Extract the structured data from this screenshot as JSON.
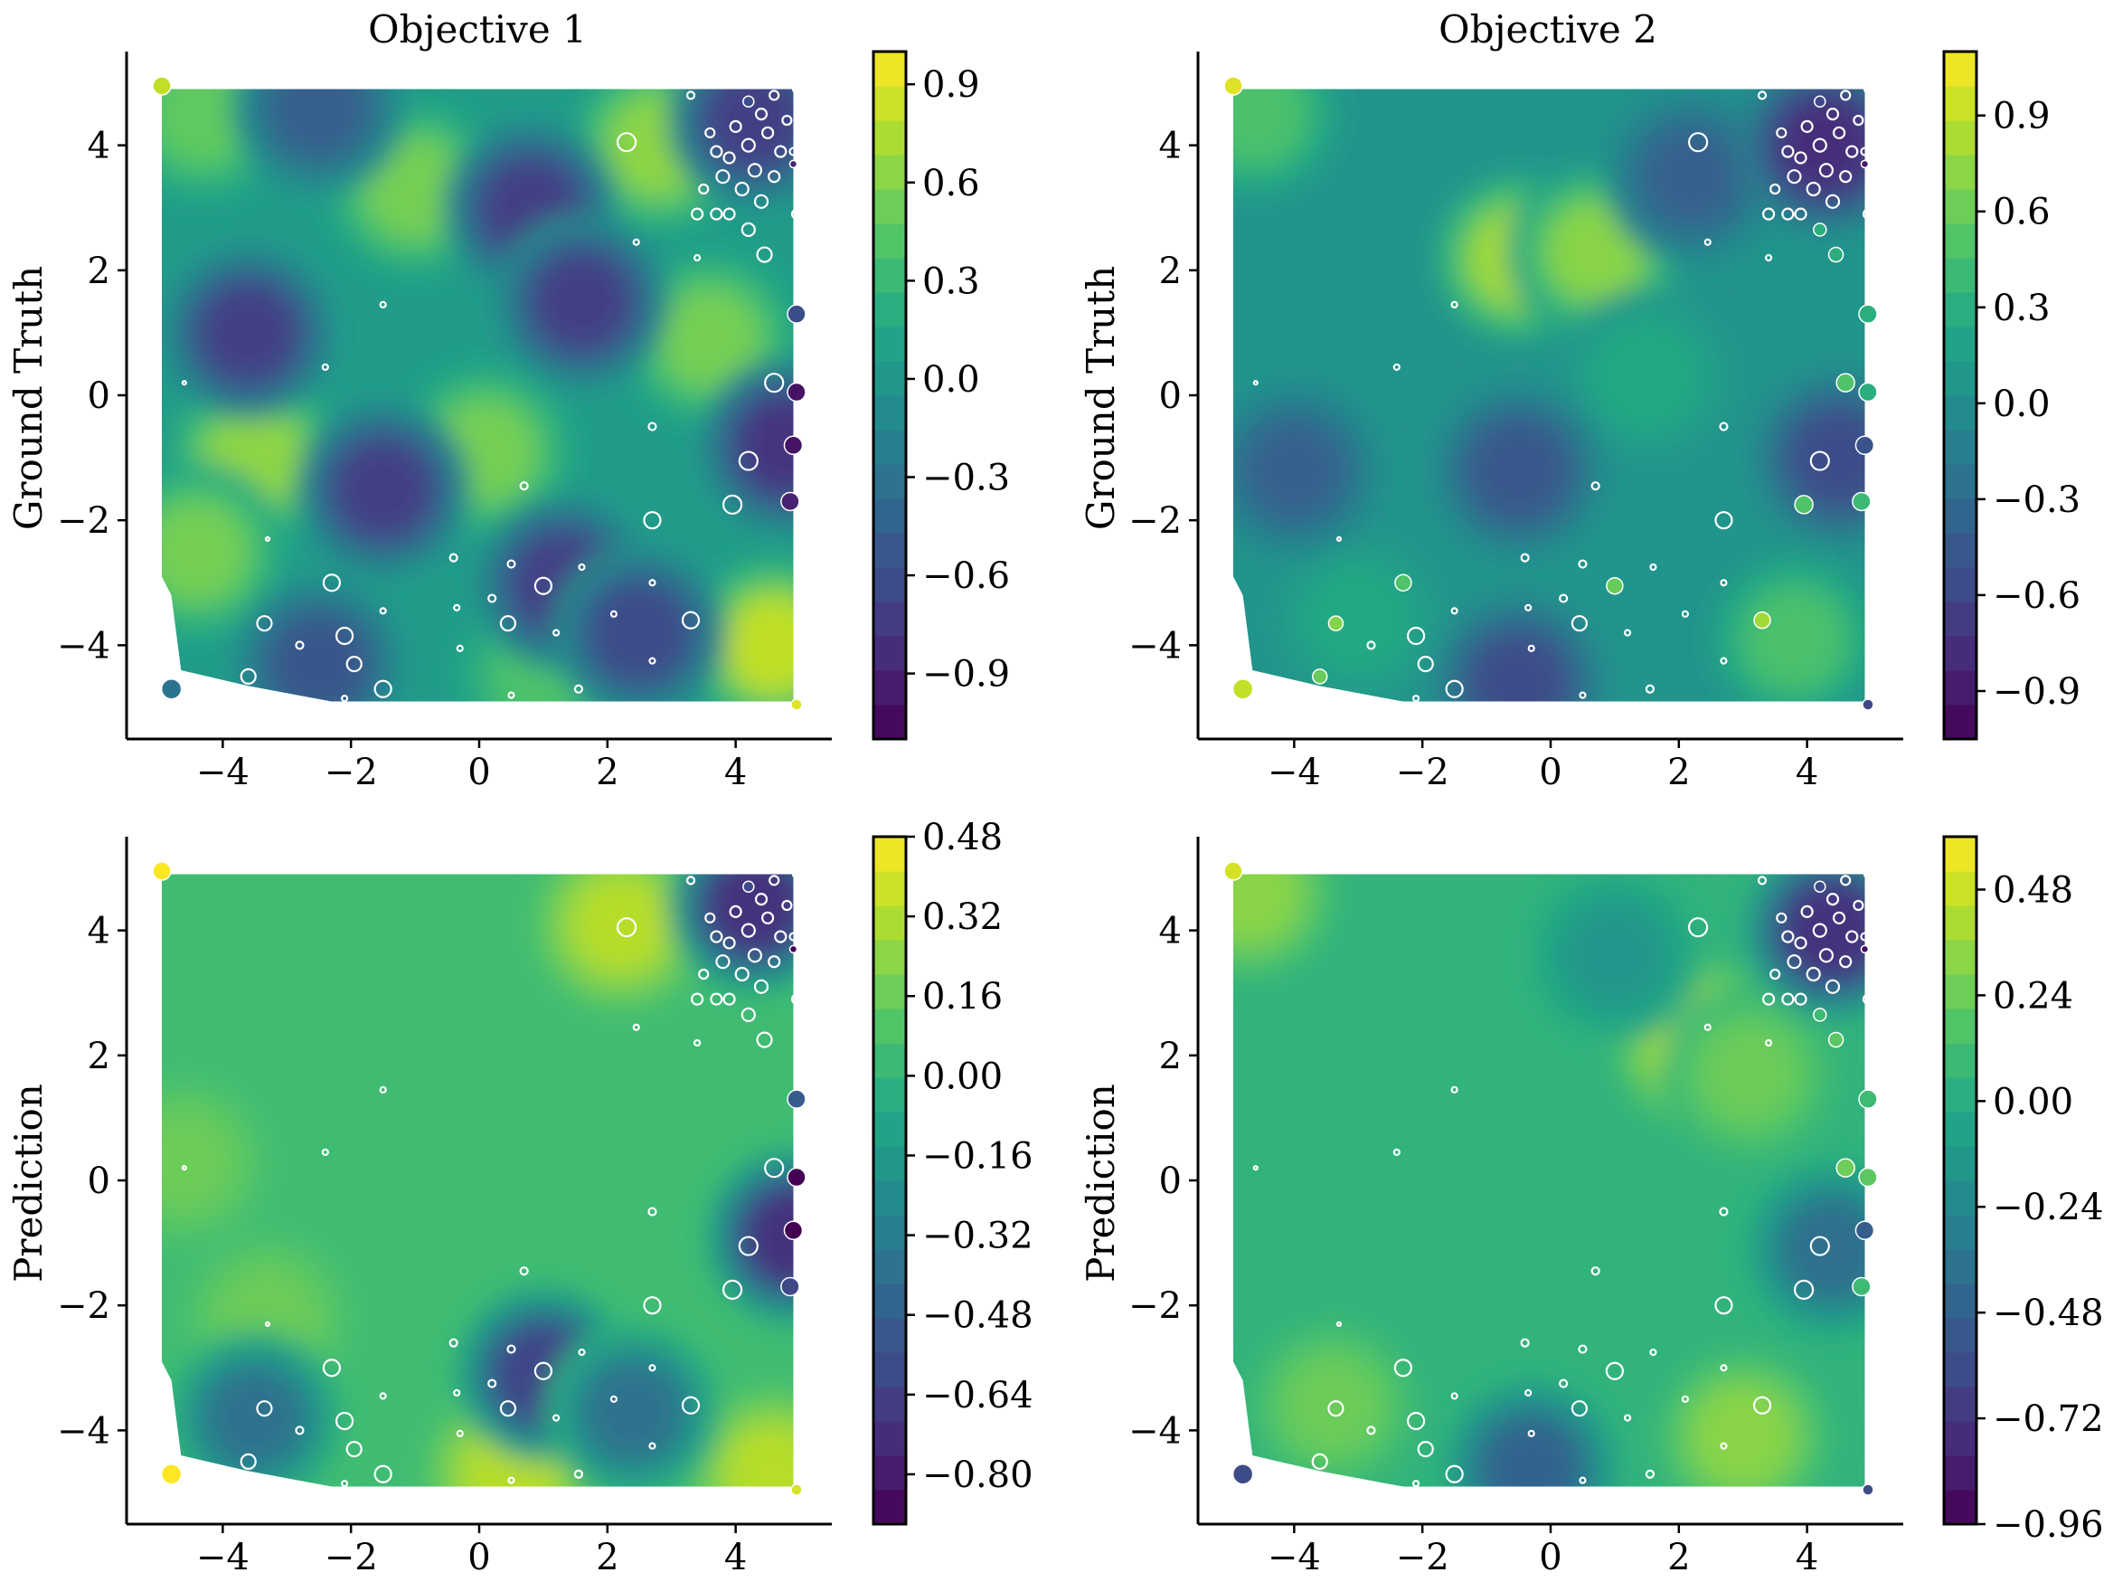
{
  "chart_data": [
    {
      "type": "contour",
      "title": "Objective 1",
      "ylabel": "Ground Truth",
      "xlim": [
        -5.5,
        5.5
      ],
      "ylim": [
        -5.5,
        5.5
      ],
      "x_ticks": [
        -4,
        -2,
        0,
        2,
        4
      ],
      "y_ticks": [
        -4,
        -2,
        0,
        2,
        4
      ],
      "colorbar": {
        "range": [
          -1.1,
          1.0
        ],
        "ticks": [
          0.9,
          0.6,
          0.3,
          0.0,
          -0.3,
          -0.6,
          -0.9
        ],
        "tick_labels": [
          "0.9",
          "0.6",
          "0.3",
          "0.0",
          "−0.3",
          "−0.6",
          "−0.9"
        ]
      },
      "field_blobs": [
        {
          "x": 2.8,
          "y": 4.0,
          "v": 0.8
        },
        {
          "x": -1.0,
          "y": 3.3,
          "v": 0.7
        },
        {
          "x": 3.6,
          "y": 0.9,
          "v": 0.7
        },
        {
          "x": 0.1,
          "y": -0.9,
          "v": 0.7
        },
        {
          "x": -3.5,
          "y": -1.0,
          "v": 0.8
        },
        {
          "x": -4.4,
          "y": -2.5,
          "v": 0.7
        },
        {
          "x": 4.6,
          "y": -4.0,
          "v": 1.0
        },
        {
          "x": -4.3,
          "y": 4.5,
          "v": 0.6
        },
        {
          "x": 1.0,
          "y": -4.5,
          "v": 0.5
        },
        {
          "x": -3.6,
          "y": 1.0,
          "v": -0.9
        },
        {
          "x": 0.8,
          "y": 3.0,
          "v": -0.9
        },
        {
          "x": 1.6,
          "y": 1.5,
          "v": -0.9
        },
        {
          "x": -1.5,
          "y": -1.5,
          "v": -0.9
        },
        {
          "x": 1.3,
          "y": -3.0,
          "v": -0.9
        },
        {
          "x": 2.5,
          "y": -3.8,
          "v": -0.8
        },
        {
          "x": 4.8,
          "y": -0.8,
          "v": -1.0
        },
        {
          "x": 4.3,
          "y": 4.4,
          "v": -0.9
        },
        {
          "x": -2.5,
          "y": 4.6,
          "v": -0.6
        },
        {
          "x": -2.5,
          "y": -4.3,
          "v": -0.7
        }
      ]
    },
    {
      "type": "contour",
      "title": "Objective 2",
      "ylabel": "Ground Truth",
      "xlim": [
        -5.5,
        5.5
      ],
      "ylim": [
        -5.5,
        5.5
      ],
      "x_ticks": [
        -4,
        -2,
        0,
        2,
        4
      ],
      "y_ticks": [
        -4,
        -2,
        0,
        2,
        4
      ],
      "colorbar": {
        "range": [
          -1.05,
          1.1
        ],
        "ticks": [
          0.9,
          0.6,
          0.3,
          0.0,
          -0.3,
          -0.6,
          -0.9
        ],
        "tick_labels": [
          "0.9",
          "0.6",
          "0.3",
          "0.0",
          "−0.3",
          "−0.6",
          "−0.9"
        ]
      },
      "field_blobs": [
        {
          "x": -0.5,
          "y": 2.2,
          "v": 1.0
        },
        {
          "x": 0.7,
          "y": 2.3,
          "v": 0.9
        },
        {
          "x": 3.8,
          "y": -3.9,
          "v": 0.6
        },
        {
          "x": -4.6,
          "y": 4.5,
          "v": 0.6
        },
        {
          "x": 1.5,
          "y": 0.3,
          "v": 0.3
        },
        {
          "x": -3.0,
          "y": -3.6,
          "v": 0.3
        },
        {
          "x": 2.2,
          "y": 3.5,
          "v": -0.5
        },
        {
          "x": -0.5,
          "y": -1.2,
          "v": -0.6
        },
        {
          "x": 4.3,
          "y": 4.0,
          "v": -1.0
        },
        {
          "x": -0.5,
          "y": -4.6,
          "v": -0.7
        },
        {
          "x": 4.5,
          "y": -1.0,
          "v": -0.7
        },
        {
          "x": -4.0,
          "y": -1.2,
          "v": -0.5
        }
      ]
    },
    {
      "type": "contour",
      "title": "",
      "ylabel": "Prediction",
      "xlim": [
        -5.5,
        5.5
      ],
      "ylim": [
        -5.5,
        5.5
      ],
      "x_ticks": [
        -4,
        -2,
        0,
        2,
        4
      ],
      "y_ticks": [
        -4,
        -2,
        0,
        2,
        4
      ],
      "colorbar": {
        "range": [
          -0.9,
          0.48
        ],
        "ticks": [
          0.48,
          0.32,
          0.16,
          0.0,
          -0.16,
          -0.32,
          -0.48,
          -0.64,
          -0.8
        ],
        "tick_labels": [
          "0.48",
          "0.32",
          "0.16",
          "0.00",
          "−0.16",
          "−0.32",
          "−0.48",
          "−0.64",
          "−0.80"
        ]
      },
      "field_blobs": [
        {
          "x": 2.2,
          "y": 4.1,
          "v": 0.4
        },
        {
          "x": -4.6,
          "y": 0.3,
          "v": 0.2
        },
        {
          "x": 0.5,
          "y": -4.7,
          "v": 0.4
        },
        {
          "x": 4.6,
          "y": -4.7,
          "v": 0.4
        },
        {
          "x": -3.3,
          "y": -2.2,
          "v": 0.2
        },
        {
          "x": 1.0,
          "y": -3.1,
          "v": -0.8
        },
        {
          "x": -3.5,
          "y": -3.8,
          "v": -0.5
        },
        {
          "x": 4.9,
          "y": -0.9,
          "v": -0.9
        },
        {
          "x": 4.3,
          "y": 4.4,
          "v": -0.9
        },
        {
          "x": 2.4,
          "y": -3.7,
          "v": -0.5
        }
      ]
    },
    {
      "type": "contour",
      "title": "",
      "ylabel": "Prediction",
      "xlim": [
        -5.5,
        5.5
      ],
      "ylim": [
        -5.5,
        5.5
      ],
      "x_ticks": [
        -4,
        -2,
        0,
        2,
        4
      ],
      "y_ticks": [
        -4,
        -2,
        0,
        2,
        4
      ],
      "colorbar": {
        "range": [
          -0.96,
          0.6
        ],
        "ticks": [
          0.48,
          0.24,
          0.0,
          -0.24,
          -0.48,
          -0.72,
          -0.96
        ],
        "tick_labels": [
          "0.48",
          "0.24",
          "0.00",
          "−0.24",
          "−0.48",
          "−0.72",
          "−0.96"
        ]
      },
      "field_blobs": [
        {
          "x": 2.3,
          "y": 2.2,
          "v": 0.5
        },
        {
          "x": 3.1,
          "y": 1.7,
          "v": 0.3
        },
        {
          "x": 3.0,
          "y": -4.1,
          "v": 0.4
        },
        {
          "x": -4.7,
          "y": 4.6,
          "v": 0.4
        },
        {
          "x": -3.4,
          "y": -3.6,
          "v": 0.3
        },
        {
          "x": 4.4,
          "y": 4.0,
          "v": -0.95
        },
        {
          "x": 4.4,
          "y": -1.1,
          "v": -0.5
        },
        {
          "x": -0.3,
          "y": -4.6,
          "v": -0.6
        },
        {
          "x": 1.0,
          "y": 3.6,
          "v": -0.2
        }
      ]
    }
  ],
  "samples": [
    {
      "x": -4.8,
      "y": -4.7,
      "r": 11,
      "c": [
        -0.3,
        0.9,
        0.6,
        -0.6
      ]
    },
    {
      "x": -4.95,
      "y": 4.95,
      "r": 10,
      "c": [
        0.8,
        1.0,
        0.48,
        0.5
      ]
    },
    {
      "x": 2.3,
      "y": 4.05,
      "r": 10,
      "c": [
        null,
        null,
        null,
        null
      ]
    },
    {
      "x": 4.95,
      "y": 1.3,
      "r": 10,
      "c": [
        -0.6,
        0.3,
        -0.5,
        0.1
      ]
    },
    {
      "x": 4.95,
      "y": 0.05,
      "r": 10,
      "c": [
        -1.0,
        0.3,
        -0.9,
        0.2
      ]
    },
    {
      "x": 4.9,
      "y": -0.8,
      "r": 10,
      "c": [
        -1.0,
        -0.5,
        -0.9,
        -0.5
      ]
    },
    {
      "x": 4.85,
      "y": -1.7,
      "r": 10,
      "c": [
        -0.9,
        0.4,
        -0.6,
        0.1
      ]
    },
    {
      "x": 4.6,
      "y": 0.2,
      "r": 10,
      "c": [
        null,
        0.5,
        null,
        0.25
      ]
    },
    {
      "x": 4.45,
      "y": 2.25,
      "r": 8,
      "c": [
        null,
        0.3,
        null,
        0.2
      ]
    },
    {
      "x": 4.2,
      "y": -1.05,
      "r": 10,
      "c": [
        null,
        null,
        null,
        null
      ]
    },
    {
      "x": 3.95,
      "y": -1.75,
      "r": 10,
      "c": [
        null,
        0.5,
        null,
        null
      ]
    },
    {
      "x": 2.7,
      "y": -2.0,
      "r": 9,
      "c": [
        null,
        null,
        null,
        null
      ]
    },
    {
      "x": 3.3,
      "y": -3.6,
      "r": 9,
      "c": [
        null,
        0.8,
        null,
        null
      ]
    },
    {
      "x": 1.0,
      "y": -3.05,
      "r": 9,
      "c": [
        null,
        0.6,
        null,
        null
      ]
    },
    {
      "x": -2.3,
      "y": -3.0,
      "r": 9,
      "c": [
        null,
        0.5,
        null,
        null
      ]
    },
    {
      "x": -3.35,
      "y": -3.65,
      "r": 8,
      "c": [
        null,
        0.7,
        null,
        null
      ]
    },
    {
      "x": -2.1,
      "y": -3.85,
      "r": 9,
      "c": [
        null,
        null,
        null,
        null
      ]
    },
    {
      "x": -1.95,
      "y": -4.3,
      "r": 8,
      "c": [
        null,
        null,
        null,
        null
      ]
    },
    {
      "x": -3.6,
      "y": -4.5,
      "r": 8,
      "c": [
        null,
        0.6,
        null,
        null
      ]
    },
    {
      "x": -1.5,
      "y": -4.7,
      "r": 9,
      "c": [
        null,
        null,
        null,
        null
      ]
    },
    {
      "x": 0.45,
      "y": -3.65,
      "r": 8,
      "c": [
        null,
        null,
        null,
        null
      ]
    },
    {
      "x": 4.95,
      "y": -4.95,
      "r": 6,
      "c": [
        0.9,
        -0.6,
        0.4,
        -0.6
      ]
    },
    {
      "x": 4.95,
      "y": 4.9,
      "r": 4,
      "c": [
        null,
        null,
        null,
        null
      ]
    },
    {
      "x": 4.95,
      "y": 2.9,
      "r": 5,
      "c": [
        null,
        null,
        null,
        null
      ]
    },
    {
      "x": 3.4,
      "y": 2.9,
      "r": 6,
      "c": [
        null,
        null,
        null,
        null
      ]
    },
    {
      "x": 3.7,
      "y": 2.9,
      "r": 6,
      "c": [
        null,
        null,
        null,
        null
      ]
    },
    {
      "x": 3.9,
      "y": 2.9,
      "r": 6,
      "c": [
        null,
        null,
        null,
        null
      ]
    },
    {
      "x": 4.2,
      "y": 2.65,
      "r": 7,
      "c": [
        null,
        0.3,
        null,
        0.1
      ]
    },
    {
      "x": 4.4,
      "y": 3.1,
      "r": 7,
      "c": [
        null,
        null,
        null,
        null
      ]
    },
    {
      "x": 4.1,
      "y": 3.3,
      "r": 7,
      "c": [
        null,
        null,
        null,
        null
      ]
    },
    {
      "x": 3.8,
      "y": 3.5,
      "r": 7,
      "c": [
        null,
        null,
        null,
        null
      ]
    },
    {
      "x": 4.3,
      "y": 3.6,
      "r": 7,
      "c": [
        null,
        null,
        null,
        null
      ]
    },
    {
      "x": 4.6,
      "y": 3.5,
      "r": 6,
      "c": [
        null,
        null,
        null,
        null
      ]
    },
    {
      "x": 3.9,
      "y": 3.8,
      "r": 6,
      "c": [
        null,
        null,
        null,
        null
      ]
    },
    {
      "x": 4.2,
      "y": 4.0,
      "r": 7,
      "c": [
        null,
        null,
        null,
        null
      ]
    },
    {
      "x": 4.5,
      "y": 4.2,
      "r": 6,
      "c": [
        null,
        null,
        null,
        null
      ]
    },
    {
      "x": 4.0,
      "y": 4.3,
      "r": 6,
      "c": [
        null,
        null,
        null,
        null
      ]
    },
    {
      "x": 4.4,
      "y": 4.5,
      "r": 6,
      "c": [
        null,
        null,
        null,
        null
      ]
    },
    {
      "x": 4.2,
      "y": 4.7,
      "r": 6,
      "c": [
        -0.6,
        -0.6,
        -0.6,
        -0.6
      ]
    },
    {
      "x": 4.6,
      "y": 4.8,
      "r": 5,
      "c": [
        null,
        null,
        null,
        null
      ]
    },
    {
      "x": 3.7,
      "y": 3.9,
      "r": 6,
      "c": [
        null,
        null,
        null,
        null
      ]
    },
    {
      "x": 3.6,
      "y": 4.2,
      "r": 5,
      "c": [
        null,
        null,
        null,
        null
      ]
    },
    {
      "x": 4.7,
      "y": 3.9,
      "r": 6,
      "c": [
        null,
        null,
        null,
        null
      ]
    },
    {
      "x": 4.8,
      "y": 4.4,
      "r": 5,
      "c": [
        null,
        null,
        null,
        null
      ]
    },
    {
      "x": 3.5,
      "y": 3.3,
      "r": 5,
      "c": [
        null,
        null,
        null,
        null
      ]
    },
    {
      "x": 3.3,
      "y": 4.8,
      "r": 4,
      "c": [
        null,
        null,
        null,
        null
      ]
    },
    {
      "x": 4.9,
      "y": 3.7,
      "r": 4,
      "c": [
        -0.9,
        -0.9,
        -0.9,
        -0.9
      ]
    },
    {
      "x": 4.9,
      "y": 3.9,
      "r": 4,
      "c": [
        null,
        null,
        null,
        null
      ]
    },
    {
      "x": 2.45,
      "y": 2.45,
      "r": 3,
      "c": [
        null,
        null,
        null,
        null
      ]
    },
    {
      "x": 3.4,
      "y": 2.2,
      "r": 3,
      "c": [
        null,
        null,
        null,
        null
      ]
    },
    {
      "x": -2.4,
      "y": 0.45,
      "r": 3,
      "c": [
        null,
        null,
        null,
        null
      ]
    },
    {
      "x": -4.6,
      "y": 0.2,
      "r": 2,
      "c": [
        null,
        null,
        null,
        null
      ]
    },
    {
      "x": 2.7,
      "y": -0.5,
      "r": 4,
      "c": [
        null,
        null,
        null,
        null
      ]
    },
    {
      "x": 0.7,
      "y": -1.45,
      "r": 4,
      "c": [
        null,
        null,
        null,
        null
      ]
    },
    {
      "x": -3.3,
      "y": -2.3,
      "r": 2,
      "c": [
        null,
        null,
        null,
        null
      ]
    },
    {
      "x": -0.4,
      "y": -2.6,
      "r": 4,
      "c": [
        null,
        null,
        null,
        null
      ]
    },
    {
      "x": 0.5,
      "y": -2.7,
      "r": 4,
      "c": [
        null,
        null,
        null,
        null
      ]
    },
    {
      "x": 1.6,
      "y": -2.75,
      "r": 3,
      "c": [
        null,
        null,
        null,
        null
      ]
    },
    {
      "x": 2.7,
      "y": -3.0,
      "r": 3,
      "c": [
        null,
        null,
        null,
        null
      ]
    },
    {
      "x": 0.2,
      "y": -3.25,
      "r": 4,
      "c": [
        null,
        null,
        null,
        null
      ]
    },
    {
      "x": -0.35,
      "y": -3.4,
      "r": 3,
      "c": [
        null,
        null,
        null,
        null
      ]
    },
    {
      "x": -1.5,
      "y": -3.45,
      "r": 3,
      "c": [
        null,
        null,
        null,
        null
      ]
    },
    {
      "x": 2.1,
      "y": -3.5,
      "r": 3,
      "c": [
        null,
        null,
        null,
        null
      ]
    },
    {
      "x": 1.2,
      "y": -3.8,
      "r": 3,
      "c": [
        null,
        null,
        null,
        null
      ]
    },
    {
      "x": -2.8,
      "y": -4.0,
      "r": 4,
      "c": [
        null,
        null,
        null,
        null
      ]
    },
    {
      "x": -0.3,
      "y": -4.05,
      "r": 3,
      "c": [
        null,
        null,
        null,
        null
      ]
    },
    {
      "x": 2.7,
      "y": -4.25,
      "r": 3,
      "c": [
        null,
        null,
        null,
        null
      ]
    },
    {
      "x": 1.55,
      "y": -4.7,
      "r": 4,
      "c": [
        null,
        null,
        null,
        null
      ]
    },
    {
      "x": 0.5,
      "y": -4.8,
      "r": 3,
      "c": [
        null,
        null,
        null,
        null
      ]
    },
    {
      "x": -2.1,
      "y": -4.85,
      "r": 3,
      "c": [
        null,
        null,
        null,
        null
      ]
    },
    {
      "x": -1.5,
      "y": 1.45,
      "r": 3,
      "c": [
        null,
        null,
        null,
        null
      ]
    }
  ]
}
